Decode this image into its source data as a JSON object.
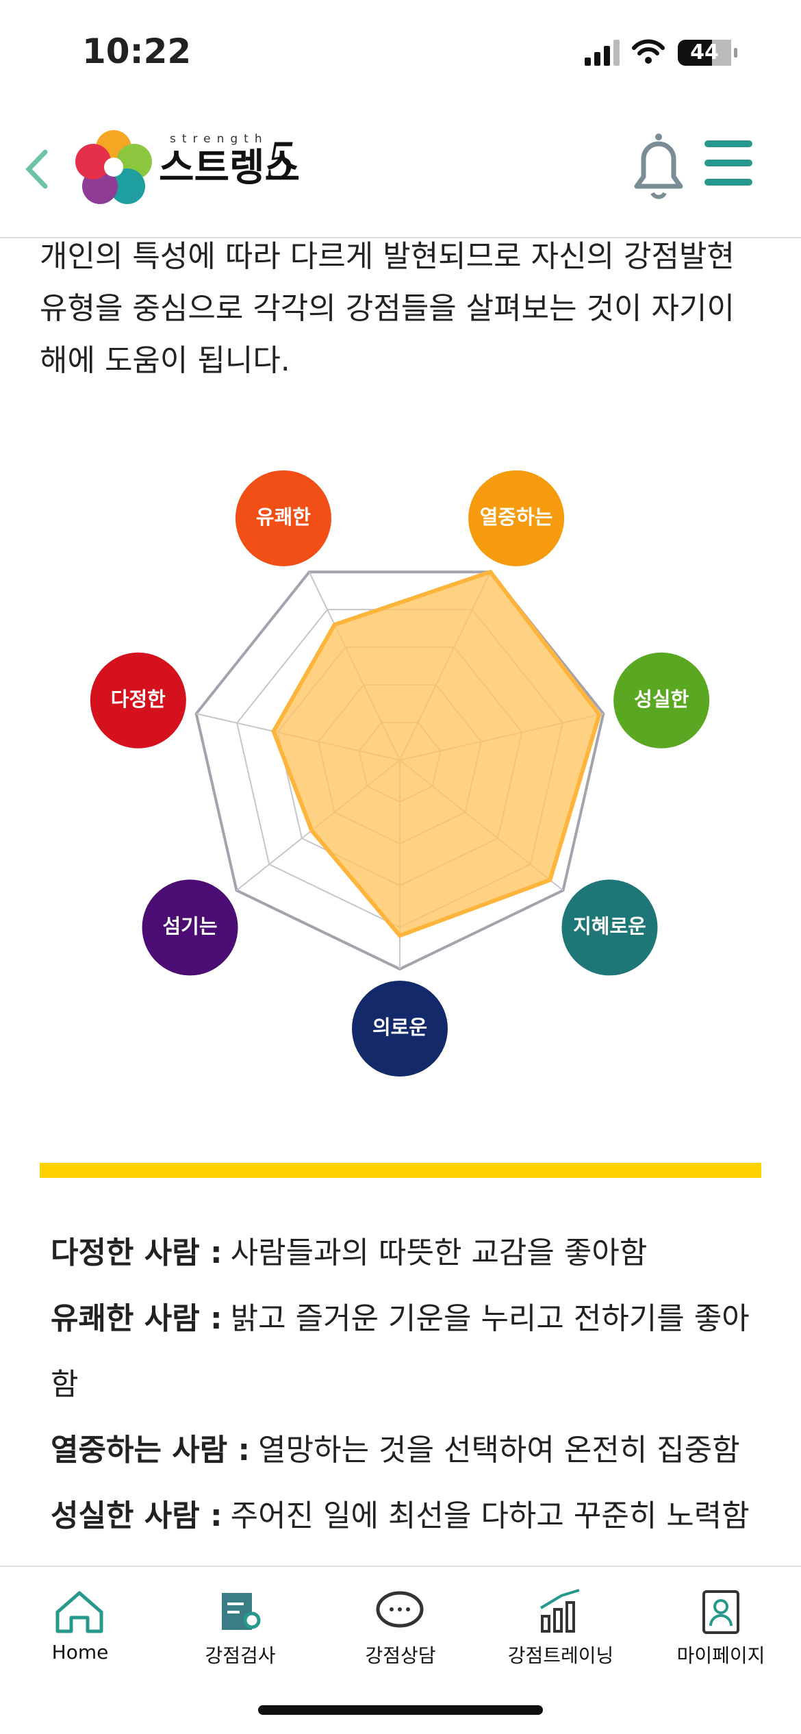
{
  "status_bar": {
    "time": "10:22",
    "battery": "44"
  },
  "header": {
    "logo_small": "strength",
    "logo_text": "스트렝스",
    "logo_number": "5"
  },
  "intro": {
    "lines": [
      "개인의 특성에 따라 다르게 발현되므로 자신의 강점발현",
      "유형을 중심으로 각각의 강점들을 살펴보는 것이 자기이",
      "해에 도움이 됩니다."
    ]
  },
  "chart_data": {
    "type": "radar",
    "categories": [
      "유쾌한",
      "열중하는",
      "성실한",
      "지혜로운",
      "의로운",
      "섬기는",
      "다정한"
    ],
    "category_colors": [
      "#f24f17",
      "#f79b0e",
      "#5aa821",
      "#1f7676",
      "#13296a",
      "#4b0d73",
      "#d5111e"
    ],
    "values": [
      3.6,
      5,
      4.9,
      4.6,
      4.2,
      2.7,
      3.1
    ],
    "color": "#ffc35a",
    "rlim": [
      0,
      5
    ],
    "rticks": [
      1,
      2,
      3,
      4,
      5
    ],
    "grid": true
  },
  "descriptions": [
    {
      "term": "다정한 사람 :",
      "text": "사람들과의 따뜻한 교감을 좋아함"
    },
    {
      "term": "유쾌한 사람 :",
      "text": "밝고 즐거운 기운을 누리고 전하기를 좋아함"
    },
    {
      "term": "열중하는 사람 :",
      "text": "열망하는 것을 선택하여 온전히 집중함"
    },
    {
      "term": "성실한 사람 :",
      "text": "주어진 일에 최선을 다하고 꾸준히 노력함"
    }
  ],
  "nav": {
    "items": [
      "Home",
      "강점검사",
      "강점상담",
      "강점트레이닝",
      "마이페이지"
    ]
  }
}
